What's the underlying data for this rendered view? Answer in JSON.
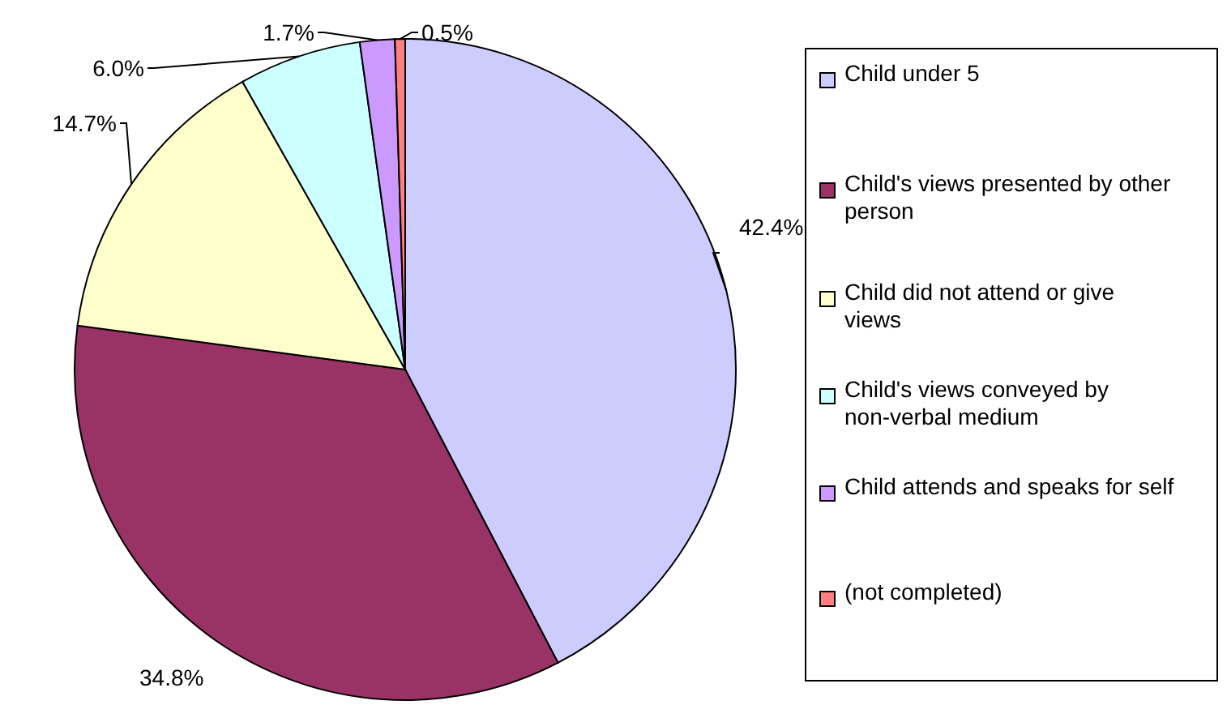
{
  "chart_data": {
    "type": "pie",
    "categories": [
      "Child under 5",
      "Child's views presented by other person",
      "Child did not attend or give views",
      "Child's views conveyed by non-verbal medium",
      "Child attends and speaks for self",
      "(not completed)"
    ],
    "values": [
      42.4,
      34.8,
      14.7,
      6.0,
      1.7,
      0.5
    ],
    "colors": [
      "#ccccff",
      "#993366",
      "#ffffcc",
      "#ccffff",
      "#cc99ff",
      "#ff8080"
    ],
    "value_labels": [
      "42.4%",
      "34.8%",
      "14.7%",
      "6.0%",
      "1.7%",
      "0.5%"
    ],
    "legend": "right"
  }
}
